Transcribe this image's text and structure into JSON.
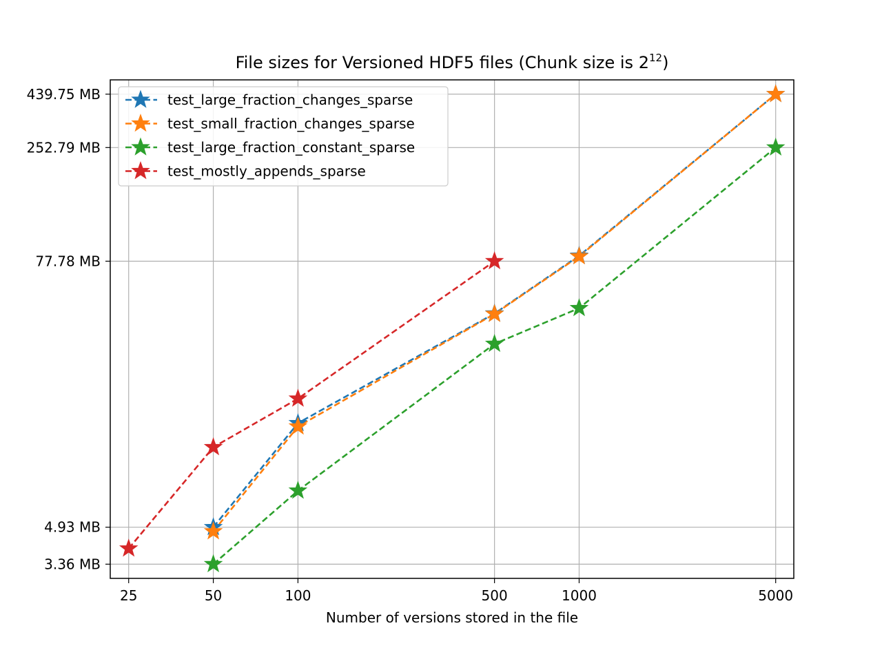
{
  "chart_data": {
    "type": "line",
    "title": "File sizes for Versioned HDF5 files (Chunk size is 2",
    "title_superscript": "12",
    "title_suffix": ")",
    "xlabel": "Number of versions stored in the file",
    "ylabel": "",
    "x_scale": "log",
    "y_scale": "log",
    "x_ticks": [
      25,
      50,
      100,
      500,
      1000,
      5000
    ],
    "x_tick_labels": [
      "25",
      "50",
      "100",
      "500",
      "1000",
      "5000"
    ],
    "y_ticks": [
      3.36,
      4.93,
      77.78,
      252.79,
      439.75
    ],
    "y_tick_labels": [
      "3.36 MB",
      "4.93 MB",
      "77.78 MB",
      "252.79 MB",
      "439.75 MB"
    ],
    "xlim": [
      21.5,
      5800
    ],
    "ylim": [
      2.9,
      510
    ],
    "grid": true,
    "legend_position": "upper-left",
    "marker": "star",
    "line_style": "dashed",
    "series": [
      {
        "name": "test_large_fraction_changes_sparse",
        "color": "#1f77b4",
        "x": [
          50,
          100,
          500,
          1000,
          5000
        ],
        "y": [
          4.93,
          14.5,
          45.2,
          82.3,
          439.75
        ]
      },
      {
        "name": "test_small_fraction_changes_sparse",
        "color": "#ff7f0e",
        "x": [
          50,
          100,
          500,
          1000,
          5000
        ],
        "y": [
          4.72,
          14.0,
          45.0,
          81.8,
          439.75
        ]
      },
      {
        "name": "test_large_fraction_constant_sparse",
        "color": "#2ca02c",
        "x": [
          50,
          100,
          500,
          1000,
          5000
        ],
        "y": [
          3.36,
          7.2,
          33.0,
          47.8,
          252.79
        ]
      },
      {
        "name": "test_mostly_appends_sparse",
        "color": "#d62728",
        "x": [
          25,
          50,
          100,
          500
        ],
        "y": [
          3.95,
          11.3,
          18.7,
          77.78
        ]
      }
    ]
  }
}
